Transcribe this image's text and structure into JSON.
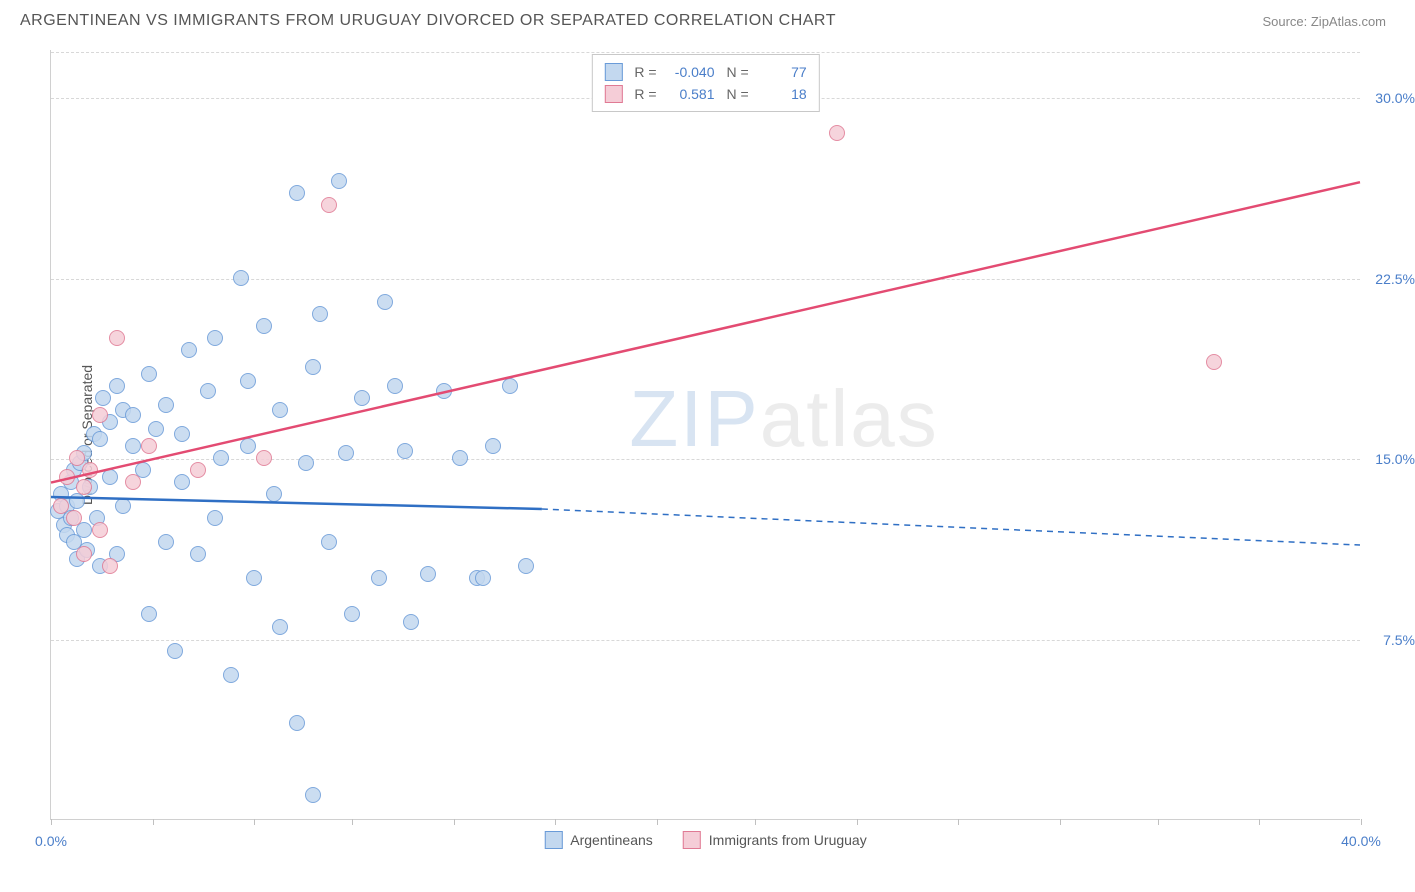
{
  "title": "ARGENTINEAN VS IMMIGRANTS FROM URUGUAY DIVORCED OR SEPARATED CORRELATION CHART",
  "source": "Source: ZipAtlas.com",
  "ylabel": "Divorced or Separated",
  "watermark": {
    "part1": "ZIP",
    "part2": "atlas"
  },
  "chart": {
    "type": "scatter",
    "xlim": [
      0,
      40
    ],
    "ylim": [
      0,
      32
    ],
    "yticks": [
      {
        "v": 7.5,
        "label": "7.5%"
      },
      {
        "v": 15.0,
        "label": "15.0%"
      },
      {
        "v": 22.5,
        "label": "22.5%"
      },
      {
        "v": 30.0,
        "label": "30.0%"
      }
    ],
    "xticks_minor": [
      0,
      3.1,
      6.2,
      9.2,
      12.3,
      15.4,
      18.5,
      21.5,
      24.6,
      27.7,
      30.8,
      33.8,
      36.9,
      40
    ],
    "xtick_labels": [
      {
        "v": 0,
        "label": "0.0%"
      },
      {
        "v": 40,
        "label": "40.0%"
      }
    ],
    "background_color": "#ffffff",
    "grid_color": "#d8d8d8",
    "point_radius": 8
  },
  "series": {
    "a": {
      "name": "Argentineans",
      "fill": "#c3d8ef",
      "stroke": "#6a9bd8",
      "line_color": "#2f6fc4",
      "r": "-0.040",
      "n": "77",
      "trend": {
        "x1": 0,
        "y1": 13.4,
        "x2_solid": 15,
        "y2_solid": 12.9,
        "x2": 40,
        "y2": 11.4
      },
      "points": [
        [
          0.2,
          12.8
        ],
        [
          0.3,
          13.5
        ],
        [
          0.4,
          12.2
        ],
        [
          0.5,
          13.0
        ],
        [
          0.5,
          11.8
        ],
        [
          0.6,
          12.5
        ],
        [
          0.6,
          14.0
        ],
        [
          0.7,
          11.5
        ],
        [
          0.7,
          14.5
        ],
        [
          0.8,
          13.2
        ],
        [
          0.8,
          10.8
        ],
        [
          0.9,
          14.8
        ],
        [
          1.0,
          12.0
        ],
        [
          1.0,
          15.2
        ],
        [
          1.1,
          11.2
        ],
        [
          1.2,
          13.8
        ],
        [
          1.3,
          16.0
        ],
        [
          1.4,
          12.5
        ],
        [
          1.5,
          15.8
        ],
        [
          1.5,
          10.5
        ],
        [
          1.6,
          17.5
        ],
        [
          1.8,
          14.2
        ],
        [
          1.8,
          16.5
        ],
        [
          2.0,
          11.0
        ],
        [
          2.0,
          18.0
        ],
        [
          2.2,
          13.0
        ],
        [
          2.2,
          17.0
        ],
        [
          2.5,
          15.5
        ],
        [
          2.5,
          16.8
        ],
        [
          2.8,
          14.5
        ],
        [
          3.0,
          18.5
        ],
        [
          3.0,
          8.5
        ],
        [
          3.2,
          16.2
        ],
        [
          3.5,
          17.2
        ],
        [
          3.5,
          11.5
        ],
        [
          3.8,
          7.0
        ],
        [
          4.0,
          16.0
        ],
        [
          4.0,
          14.0
        ],
        [
          4.2,
          19.5
        ],
        [
          4.5,
          11.0
        ],
        [
          4.8,
          17.8
        ],
        [
          5.0,
          20.0
        ],
        [
          5.0,
          12.5
        ],
        [
          5.2,
          15.0
        ],
        [
          5.5,
          6.0
        ],
        [
          5.8,
          22.5
        ],
        [
          6.0,
          15.5
        ],
        [
          6.0,
          18.2
        ],
        [
          6.2,
          10.0
        ],
        [
          6.5,
          20.5
        ],
        [
          6.8,
          13.5
        ],
        [
          7.0,
          8.0
        ],
        [
          7.0,
          17.0
        ],
        [
          7.5,
          26.0
        ],
        [
          7.5,
          4.0
        ],
        [
          7.8,
          14.8
        ],
        [
          8.0,
          1.0
        ],
        [
          8.0,
          18.8
        ],
        [
          8.2,
          21.0
        ],
        [
          8.5,
          11.5
        ],
        [
          8.8,
          26.5
        ],
        [
          9.0,
          15.2
        ],
        [
          9.2,
          8.5
        ],
        [
          9.5,
          17.5
        ],
        [
          10.0,
          10.0
        ],
        [
          10.2,
          21.5
        ],
        [
          10.5,
          18.0
        ],
        [
          10.8,
          15.3
        ],
        [
          11.0,
          8.2
        ],
        [
          11.5,
          10.2
        ],
        [
          12.0,
          17.8
        ],
        [
          12.5,
          15.0
        ],
        [
          13.0,
          10.0
        ],
        [
          13.2,
          10.0
        ],
        [
          13.5,
          15.5
        ],
        [
          14.0,
          18.0
        ],
        [
          14.5,
          10.5
        ]
      ]
    },
    "b": {
      "name": "Immigrants from Uruguay",
      "fill": "#f5cdd7",
      "stroke": "#e07a94",
      "line_color": "#e34b72",
      "r": "0.581",
      "n": "18",
      "trend": {
        "x1": 0,
        "y1": 14.0,
        "x2": 40,
        "y2": 26.5
      },
      "points": [
        [
          0.3,
          13.0
        ],
        [
          0.5,
          14.2
        ],
        [
          0.7,
          12.5
        ],
        [
          0.8,
          15.0
        ],
        [
          1.0,
          13.8
        ],
        [
          1.0,
          11.0
        ],
        [
          1.2,
          14.5
        ],
        [
          1.5,
          12.0
        ],
        [
          1.5,
          16.8
        ],
        [
          1.8,
          10.5
        ],
        [
          2.0,
          20.0
        ],
        [
          2.5,
          14.0
        ],
        [
          3.0,
          15.5
        ],
        [
          4.5,
          14.5
        ],
        [
          6.5,
          15.0
        ],
        [
          8.5,
          25.5
        ],
        [
          24.0,
          28.5
        ],
        [
          35.5,
          19.0
        ]
      ]
    }
  },
  "legend_labels": {
    "R": "R =",
    "N": "N ="
  }
}
